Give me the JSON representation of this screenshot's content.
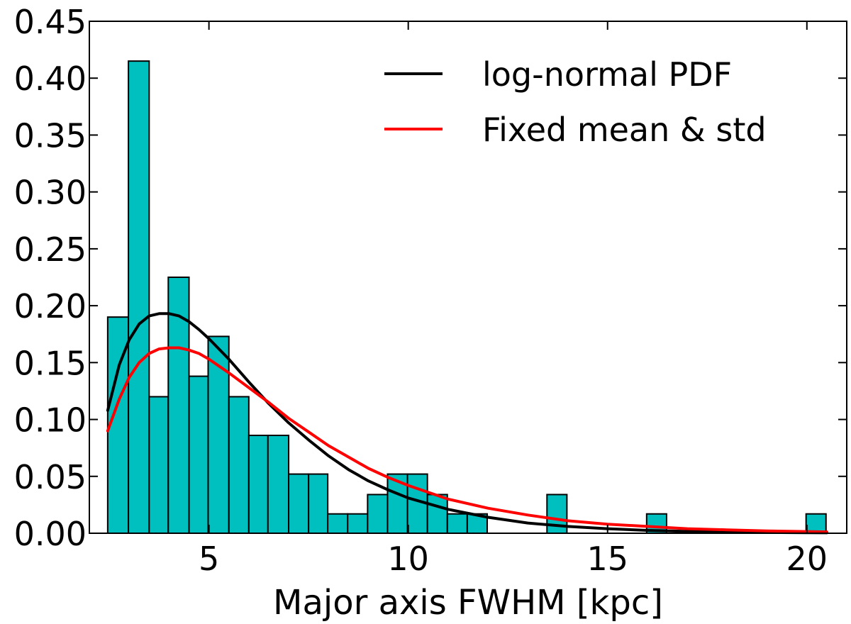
{
  "chart_data": {
    "type": "bar",
    "title": "",
    "xlabel": "Major axis FWHM [kpc]",
    "ylabel": "",
    "xlim": [
      2.0,
      21.0
    ],
    "ylim": [
      0.0,
      0.45
    ],
    "xticks": [
      {
        "value": 5,
        "label": "5"
      },
      {
        "value": 10,
        "label": "10"
      },
      {
        "value": 15,
        "label": "15"
      },
      {
        "value": 20,
        "label": "20"
      }
    ],
    "yticks": [
      {
        "value": 0.0,
        "label": "0.00"
      },
      {
        "value": 0.05,
        "label": "0.05"
      },
      {
        "value": 0.1,
        "label": "0.10"
      },
      {
        "value": 0.15,
        "label": "0.15"
      },
      {
        "value": 0.2,
        "label": "0.20"
      },
      {
        "value": 0.25,
        "label": "0.25"
      },
      {
        "value": 0.3,
        "label": "0.30"
      },
      {
        "value": 0.35,
        "label": "0.35"
      },
      {
        "value": 0.4,
        "label": "0.40"
      },
      {
        "value": 0.45,
        "label": "0.45"
      }
    ],
    "grid": false,
    "legend_position": "top-right",
    "histogram": {
      "color": "#00bfbf",
      "bin_edges": [
        2.46,
        2.98,
        3.5,
        3.98,
        4.5,
        4.98,
        5.5,
        6.0,
        6.48,
        7.0,
        7.5,
        7.98,
        8.48,
        8.98,
        9.48,
        9.98,
        10.48,
        10.98,
        11.48,
        11.98,
        12.48,
        12.98,
        13.48,
        13.98,
        14.48,
        14.98,
        15.48,
        15.98,
        16.48,
        16.98,
        17.48,
        17.98,
        18.48,
        18.98,
        19.48,
        19.98,
        20.48
      ],
      "values": [
        0.19,
        0.415,
        0.12,
        0.225,
        0.138,
        0.173,
        0.12,
        0.086,
        0.086,
        0.052,
        0.052,
        0.017,
        0.017,
        0.034,
        0.052,
        0.052,
        0.034,
        0.017,
        0.017,
        0.0,
        0.0,
        0.0,
        0.034,
        0.0,
        0.0,
        0.0,
        0.0,
        0.017,
        0.0,
        0.0,
        0.0,
        0.0,
        0.0,
        0.0,
        0.0,
        0.017
      ]
    },
    "series": [
      {
        "name": "log-normal PDF",
        "color": "#000000",
        "x": [
          2.46,
          2.75,
          3.0,
          3.25,
          3.5,
          3.75,
          4.0,
          4.25,
          4.5,
          4.75,
          5.0,
          5.5,
          6.0,
          6.5,
          7.0,
          7.5,
          8.0,
          8.5,
          9.0,
          9.5,
          10.0,
          11.0,
          12.0,
          13.0,
          14.0,
          15.0,
          16.0,
          17.0,
          18.0,
          19.0,
          20.0,
          20.5
        ],
        "y": [
          0.108,
          0.148,
          0.17,
          0.184,
          0.191,
          0.193,
          0.193,
          0.191,
          0.186,
          0.179,
          0.171,
          0.153,
          0.133,
          0.114,
          0.097,
          0.082,
          0.068,
          0.056,
          0.046,
          0.038,
          0.031,
          0.021,
          0.014,
          0.009,
          0.006,
          0.004,
          0.0025,
          0.0016,
          0.0011,
          0.0007,
          0.0005,
          0.0004
        ]
      },
      {
        "name": "Fixed mean & std",
        "color": "#ff0000",
        "x": [
          2.46,
          2.75,
          3.0,
          3.25,
          3.5,
          3.75,
          4.0,
          4.25,
          4.5,
          4.75,
          5.0,
          5.5,
          6.0,
          6.5,
          7.0,
          7.5,
          8.0,
          8.5,
          9.0,
          9.5,
          10.0,
          11.0,
          12.0,
          13.0,
          14.0,
          15.0,
          16.0,
          17.0,
          18.0,
          19.0,
          20.0,
          20.5
        ],
        "y": [
          0.09,
          0.118,
          0.137,
          0.15,
          0.158,
          0.162,
          0.163,
          0.163,
          0.161,
          0.158,
          0.153,
          0.141,
          0.128,
          0.115,
          0.101,
          0.089,
          0.077,
          0.067,
          0.057,
          0.049,
          0.042,
          0.03,
          0.022,
          0.016,
          0.011,
          0.008,
          0.006,
          0.004,
          0.003,
          0.002,
          0.0015,
          0.0012
        ]
      }
    ]
  }
}
